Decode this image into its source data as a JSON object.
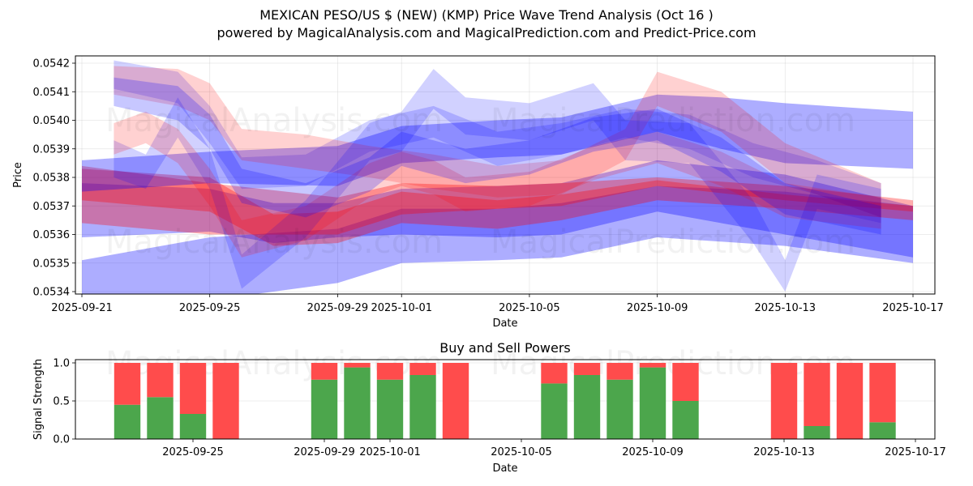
{
  "header": {
    "title": "MEXICAN PESO/US $ (NEW) (KMP) Price Wave Trend Analysis (Oct 16 )",
    "subtitle": "powered by MagicalAnalysis.com and MagicalPrediction.com and Predict-Price.com"
  },
  "watermarks": [
    "MagicalAnalysis.com",
    "MagicalPrediction.com"
  ],
  "colors": {
    "buy": "#4ca64c",
    "sell": "#ff4c4c",
    "band_blue": "#0000ff",
    "band_red": "#ff0000"
  },
  "chart_data": [
    {
      "type": "area",
      "title": "",
      "xlabel": "Date",
      "ylabel": "Price",
      "xlim": [
        "2025-09-21",
        "2025-10-17"
      ],
      "ylim": [
        0.05339,
        0.05423
      ],
      "grid": true,
      "x_ticks": [
        "2025-09-21",
        "2025-09-25",
        "2025-09-29",
        "2025-10-01",
        "2025-10-05",
        "2025-10-09",
        "2025-10-13",
        "2025-10-17"
      ],
      "y_ticks": [
        "0.0534",
        "0.0535",
        "0.0536",
        "0.0537",
        "0.0538",
        "0.0539",
        "0.0540",
        "0.0541",
        "0.0542"
      ],
      "series": [
        {
          "name": "wave-blue-1",
          "color": "blue",
          "alpha": 0.32,
          "x": [
            "2025-09-21",
            "2025-09-25",
            "2025-09-29",
            "2025-10-01",
            "2025-10-04",
            "2025-10-06",
            "2025-10-09",
            "2025-10-13",
            "2025-10-17"
          ],
          "upper": [
            0.05351,
            0.05359,
            0.05362,
            0.05369,
            0.05369,
            0.05371,
            0.05377,
            0.05375,
            0.0537
          ],
          "lower": [
            0.05338,
            0.05337,
            0.05343,
            0.0535,
            0.05351,
            0.05352,
            0.05359,
            0.05356,
            0.0535
          ]
        },
        {
          "name": "wave-purple-1",
          "color": "blue",
          "alpha": 0.32,
          "x": [
            "2025-09-21",
            "2025-09-25",
            "2025-09-27",
            "2025-09-29",
            "2025-10-01",
            "2025-10-04",
            "2025-10-06",
            "2025-10-09",
            "2025-10-13",
            "2025-10-17"
          ],
          "upper": [
            0.05378,
            0.05376,
            0.05371,
            0.05371,
            0.05376,
            0.05377,
            0.05378,
            0.05386,
            0.05381,
            0.0537
          ],
          "lower": [
            0.05359,
            0.05361,
            0.05357,
            0.05359,
            0.0536,
            0.05359,
            0.0536,
            0.05368,
            0.0536,
            0.05352
          ]
        },
        {
          "name": "wave-red-1",
          "color": "red",
          "alpha": 0.32,
          "x": [
            "2025-09-21",
            "2025-09-25",
            "2025-09-29",
            "2025-10-01",
            "2025-10-04",
            "2025-10-06",
            "2025-10-09",
            "2025-10-13",
            "2025-10-17"
          ],
          "upper": [
            0.05384,
            0.05378,
            0.05373,
            0.05378,
            0.05377,
            0.05378,
            0.0538,
            0.05377,
            0.05372
          ],
          "lower": [
            0.05364,
            0.0536,
            0.0536,
            0.05367,
            0.05369,
            0.0537,
            0.05377,
            0.05372,
            0.05368
          ]
        },
        {
          "name": "wave-red-2",
          "color": "red",
          "alpha": 0.32,
          "x": [
            "2025-09-21",
            "2025-09-25",
            "2025-09-27",
            "2025-09-29",
            "2025-10-01",
            "2025-10-04",
            "2025-10-06",
            "2025-10-09",
            "2025-10-13",
            "2025-10-17"
          ],
          "upper": [
            0.05383,
            0.0538,
            0.05367,
            0.05368,
            0.05375,
            0.05372,
            0.05374,
            0.05379,
            0.05374,
            0.0537
          ],
          "lower": [
            0.05372,
            0.05368,
            0.05356,
            0.05357,
            0.05364,
            0.05362,
            0.05365,
            0.05372,
            0.05369,
            0.05365
          ]
        },
        {
          "name": "wave-blue-2",
          "color": "blue",
          "alpha": 0.32,
          "x": [
            "2025-09-21",
            "2025-09-25",
            "2025-09-29",
            "2025-10-01",
            "2025-10-04",
            "2025-10-06",
            "2025-10-09",
            "2025-10-11",
            "2025-10-13",
            "2025-10-17"
          ],
          "upper": [
            0.05386,
            0.05389,
            0.05391,
            0.05398,
            0.054,
            0.05401,
            0.05409,
            0.05408,
            0.05406,
            0.05403
          ],
          "lower": [
            0.05375,
            0.05378,
            0.05377,
            0.05385,
            0.05387,
            0.05388,
            0.05396,
            0.0539,
            0.05385,
            0.05383
          ]
        },
        {
          "name": "wave-blue-3",
          "color": "blue",
          "alpha": 0.18,
          "x": [
            "2025-09-22",
            "2025-09-24",
            "2025-09-25",
            "2025-09-26",
            "2025-09-28",
            "2025-09-30",
            "2025-10-02",
            "2025-10-04",
            "2025-10-06",
            "2025-10-08",
            "2025-10-10",
            "2025-10-12",
            "2025-10-14",
            "2025-10-16"
          ],
          "upper": [
            0.05421,
            0.05417,
            0.05405,
            0.05387,
            0.05388,
            0.054,
            0.05405,
            0.05396,
            0.05399,
            0.05404,
            0.05402,
            0.05392,
            0.05386,
            0.05378
          ],
          "lower": [
            0.05411,
            0.05406,
            0.05392,
            0.05376,
            0.05377,
            0.05389,
            0.05394,
            0.05384,
            0.05388,
            0.05394,
            0.0539,
            0.0538,
            0.05374,
            0.05366
          ]
        },
        {
          "name": "wave-red-3",
          "color": "red",
          "alpha": 0.18,
          "x": [
            "2025-09-22",
            "2025-09-24",
            "2025-09-25",
            "2025-09-26",
            "2025-09-28",
            "2025-09-30",
            "2025-10-02",
            "2025-10-04",
            "2025-10-06",
            "2025-10-08",
            "2025-10-09",
            "2025-10-11",
            "2025-10-13",
            "2025-10-16"
          ],
          "upper": [
            0.05419,
            0.05418,
            0.05413,
            0.05397,
            0.05395,
            0.05391,
            0.05388,
            0.05384,
            0.05386,
            0.05397,
            0.05417,
            0.0541,
            0.05392,
            0.05378
          ],
          "lower": [
            0.05409,
            0.05405,
            0.054,
            0.05386,
            0.05383,
            0.0538,
            0.05376,
            0.05373,
            0.05374,
            0.05386,
            0.05405,
            0.05396,
            0.05378,
            0.05366
          ]
        },
        {
          "name": "wave-blue-4",
          "color": "blue",
          "alpha": 0.18,
          "x": [
            "2025-09-22",
            "2025-09-23",
            "2025-09-24",
            "2025-09-25",
            "2025-09-26",
            "2025-09-28",
            "2025-09-30",
            "2025-10-01",
            "2025-10-02",
            "2025-10-03",
            "2025-10-05",
            "2025-10-07",
            "2025-10-08",
            "2025-10-10",
            "2025-10-12",
            "2025-10-13",
            "2025-10-14",
            "2025-10-16"
          ],
          "upper": [
            0.05393,
            0.05388,
            0.05408,
            0.0539,
            0.05353,
            0.05372,
            0.05399,
            0.05403,
            0.05418,
            0.05408,
            0.05406,
            0.05413,
            0.054,
            0.05399,
            0.05372,
            0.05351,
            0.05381,
            0.05376
          ],
          "lower": [
            0.0538,
            0.05376,
            0.05394,
            0.05376,
            0.05341,
            0.05359,
            0.05386,
            0.05389,
            0.05404,
            0.05395,
            0.05393,
            0.054,
            0.05386,
            0.05385,
            0.05357,
            0.0534,
            0.05369,
            0.05364
          ]
        },
        {
          "name": "wave-red-4",
          "color": "red",
          "alpha": 0.18,
          "x": [
            "2025-09-22",
            "2025-09-23",
            "2025-09-24",
            "2025-09-25",
            "2025-09-26",
            "2025-09-28",
            "2025-09-30",
            "2025-10-01",
            "2025-10-02",
            "2025-10-03",
            "2025-10-05",
            "2025-10-07",
            "2025-10-09",
            "2025-10-11",
            "2025-10-13",
            "2025-10-16"
          ],
          "upper": [
            0.05399,
            0.05403,
            0.05397,
            0.05383,
            0.05365,
            0.0537,
            0.05385,
            0.05389,
            0.05386,
            0.0538,
            0.05382,
            0.05391,
            0.05396,
            0.05389,
            0.05378,
            0.05373
          ],
          "lower": [
            0.05388,
            0.05392,
            0.05385,
            0.0537,
            0.05352,
            0.05358,
            0.05373,
            0.05377,
            0.05374,
            0.05368,
            0.0537,
            0.05379,
            0.05385,
            0.05377,
            0.05366,
            0.05362
          ]
        },
        {
          "name": "wave-purple-2",
          "color": "blue",
          "alpha": 0.22,
          "x": [
            "2025-09-22",
            "2025-09-24",
            "2025-09-25",
            "2025-09-26",
            "2025-09-28",
            "2025-09-30",
            "2025-10-01",
            "2025-10-02",
            "2025-10-03",
            "2025-10-05",
            "2025-10-07",
            "2025-10-09",
            "2025-10-11",
            "2025-10-13",
            "2025-10-16"
          ],
          "upper": [
            0.05415,
            0.05412,
            0.05402,
            0.05383,
            0.05378,
            0.05387,
            0.05396,
            0.05393,
            0.0539,
            0.05393,
            0.05401,
            0.05404,
            0.05394,
            0.05378,
            0.0537
          ],
          "lower": [
            0.05405,
            0.054,
            0.0539,
            0.05371,
            0.05366,
            0.05375,
            0.05384,
            0.05381,
            0.05378,
            0.05381,
            0.05389,
            0.05393,
            0.05382,
            0.05367,
            0.0536
          ]
        }
      ]
    },
    {
      "type": "bar",
      "stacked": true,
      "title": "Buy and Sell Powers",
      "xlabel": "Date",
      "ylabel": "Signal Strength",
      "ylim": [
        0,
        1.05
      ],
      "y_ticks": [
        "0.0",
        "0.5",
        "1.0"
      ],
      "x_ticks": [
        "2025-09-25",
        "2025-09-29",
        "2025-10-01",
        "2025-10-05",
        "2025-10-09",
        "2025-10-13",
        "2025-10-17"
      ],
      "grid": true,
      "categories": [
        "2025-09-23",
        "2025-09-24",
        "2025-09-25",
        "2025-09-26",
        "2025-09-29",
        "2025-09-30",
        "2025-10-01",
        "2025-10-02",
        "2025-10-03",
        "2025-10-06",
        "2025-10-07",
        "2025-10-08",
        "2025-10-09",
        "2025-10-10",
        "2025-10-13",
        "2025-10-14",
        "2025-10-15",
        "2025-10-16"
      ],
      "series": [
        {
          "name": "Buy",
          "color": "#4ca64c",
          "values": [
            0.45,
            0.55,
            0.33,
            0.0,
            0.78,
            0.94,
            0.78,
            0.84,
            0.0,
            0.73,
            0.84,
            0.78,
            0.94,
            0.5,
            0.0,
            0.17,
            0.0,
            0.22
          ]
        },
        {
          "name": "Sell",
          "color": "#ff4c4c",
          "values": [
            0.55,
            0.45,
            0.67,
            1.0,
            0.22,
            0.06,
            0.22,
            0.16,
            1.0,
            0.27,
            0.16,
            0.22,
            0.06,
            0.5,
            1.0,
            0.83,
            1.0,
            0.78
          ]
        }
      ]
    }
  ]
}
